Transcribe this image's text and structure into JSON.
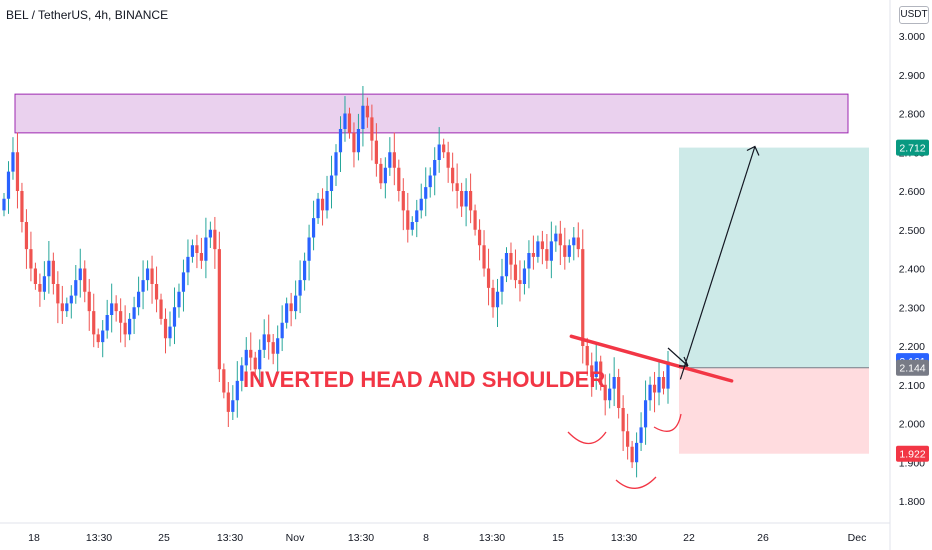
{
  "header": {
    "symbol": "BEL / TetherUS, 4h, BINANCE",
    "currency": "USDT"
  },
  "annotation": {
    "pattern_label": "INVERTED HEAD AND SHOULDER"
  },
  "colors": {
    "up": "#2962ff",
    "down": "#ef5350",
    "zone": "#e1bee7",
    "zone_border": "#9c27b0",
    "profit": "#b2dfdb",
    "loss": "#ffcdd2",
    "neckline": "#f23645",
    "arrow": "#131722"
  },
  "chart_data": {
    "type": "candlestick",
    "title": "BEL / TetherUS, 4h, BINANCE",
    "y_ticks": [
      "3.000",
      "2.900",
      "2.800",
      "2.700",
      "2.600",
      "2.500",
      "2.400",
      "2.300",
      "2.200",
      "2.100",
      "2.000",
      "1.900",
      "1.800"
    ],
    "x_ticks": [
      "18",
      "13:30",
      "25",
      "13:30",
      "Nov",
      "13:30",
      "8",
      "13:30",
      "15",
      "13:30",
      "22",
      "26",
      "Dec"
    ],
    "ylim": [
      1.75,
      3.03
    ],
    "grid": false,
    "price_labels": [
      {
        "value": 2.712,
        "text": "2.712",
        "color": "#089981"
      },
      {
        "value": 2.161,
        "text": "2.161",
        "color": "#2962ff"
      },
      {
        "value": 2.144,
        "text": "2.144",
        "color": "#787b86"
      },
      {
        "value": 1.922,
        "text": "1.922",
        "color": "#f23645"
      }
    ],
    "resistance_zone": [
      2.75,
      2.85
    ],
    "position": {
      "entry": 2.144,
      "target": 2.712,
      "stop": 1.922
    },
    "neckline": [
      {
        "x": 0.613,
        "y": 2.225
      },
      {
        "x": 0.785,
        "y": 2.11
      }
    ],
    "target_arrow": [
      {
        "x": 0.73,
        "y": 2.15
      },
      {
        "x": 0.81,
        "y": 2.72
      }
    ],
    "closes": [
      2.58,
      2.65,
      2.7,
      2.6,
      2.52,
      2.45,
      2.4,
      2.36,
      2.34,
      2.38,
      2.42,
      2.36,
      2.31,
      2.29,
      2.31,
      2.33,
      2.37,
      2.4,
      2.34,
      2.29,
      2.23,
      2.21,
      2.24,
      2.28,
      2.31,
      2.29,
      2.26,
      2.23,
      2.27,
      2.3,
      2.34,
      2.37,
      2.4,
      2.36,
      2.32,
      2.27,
      2.22,
      2.25,
      2.3,
      2.34,
      2.39,
      2.43,
      2.46,
      2.44,
      2.42,
      2.48,
      2.5,
      2.45,
      2.14,
      2.08,
      2.03,
      2.06,
      2.11,
      2.15,
      2.19,
      2.17,
      2.14,
      2.19,
      2.23,
      2.21,
      2.18,
      2.22,
      2.26,
      2.31,
      2.29,
      2.33,
      2.37,
      2.42,
      2.48,
      2.53,
      2.58,
      2.55,
      2.6,
      2.64,
      2.7,
      2.76,
      2.8,
      2.75,
      2.7,
      2.76,
      2.82,
      2.79,
      2.73,
      2.67,
      2.62,
      2.66,
      2.7,
      2.66,
      2.6,
      2.55,
      2.5,
      2.52,
      2.55,
      2.58,
      2.61,
      2.64,
      2.68,
      2.72,
      2.7,
      2.66,
      2.62,
      2.6,
      2.56,
      2.6,
      2.55,
      2.5,
      2.46,
      2.4,
      2.35,
      2.3,
      2.34,
      2.38,
      2.44,
      2.41,
      2.37,
      2.36,
      2.4,
      2.44,
      2.43,
      2.47,
      2.45,
      2.42,
      2.47,
      2.49,
      2.46,
      2.43,
      2.46,
      2.48,
      2.45,
      2.2,
      2.15,
      2.12,
      2.16,
      2.1,
      2.06,
      2.09,
      2.12,
      2.04,
      1.98,
      1.94,
      1.9,
      1.95,
      1.99,
      2.06,
      2.1,
      2.08,
      2.12,
      2.09,
      2.16
    ]
  }
}
